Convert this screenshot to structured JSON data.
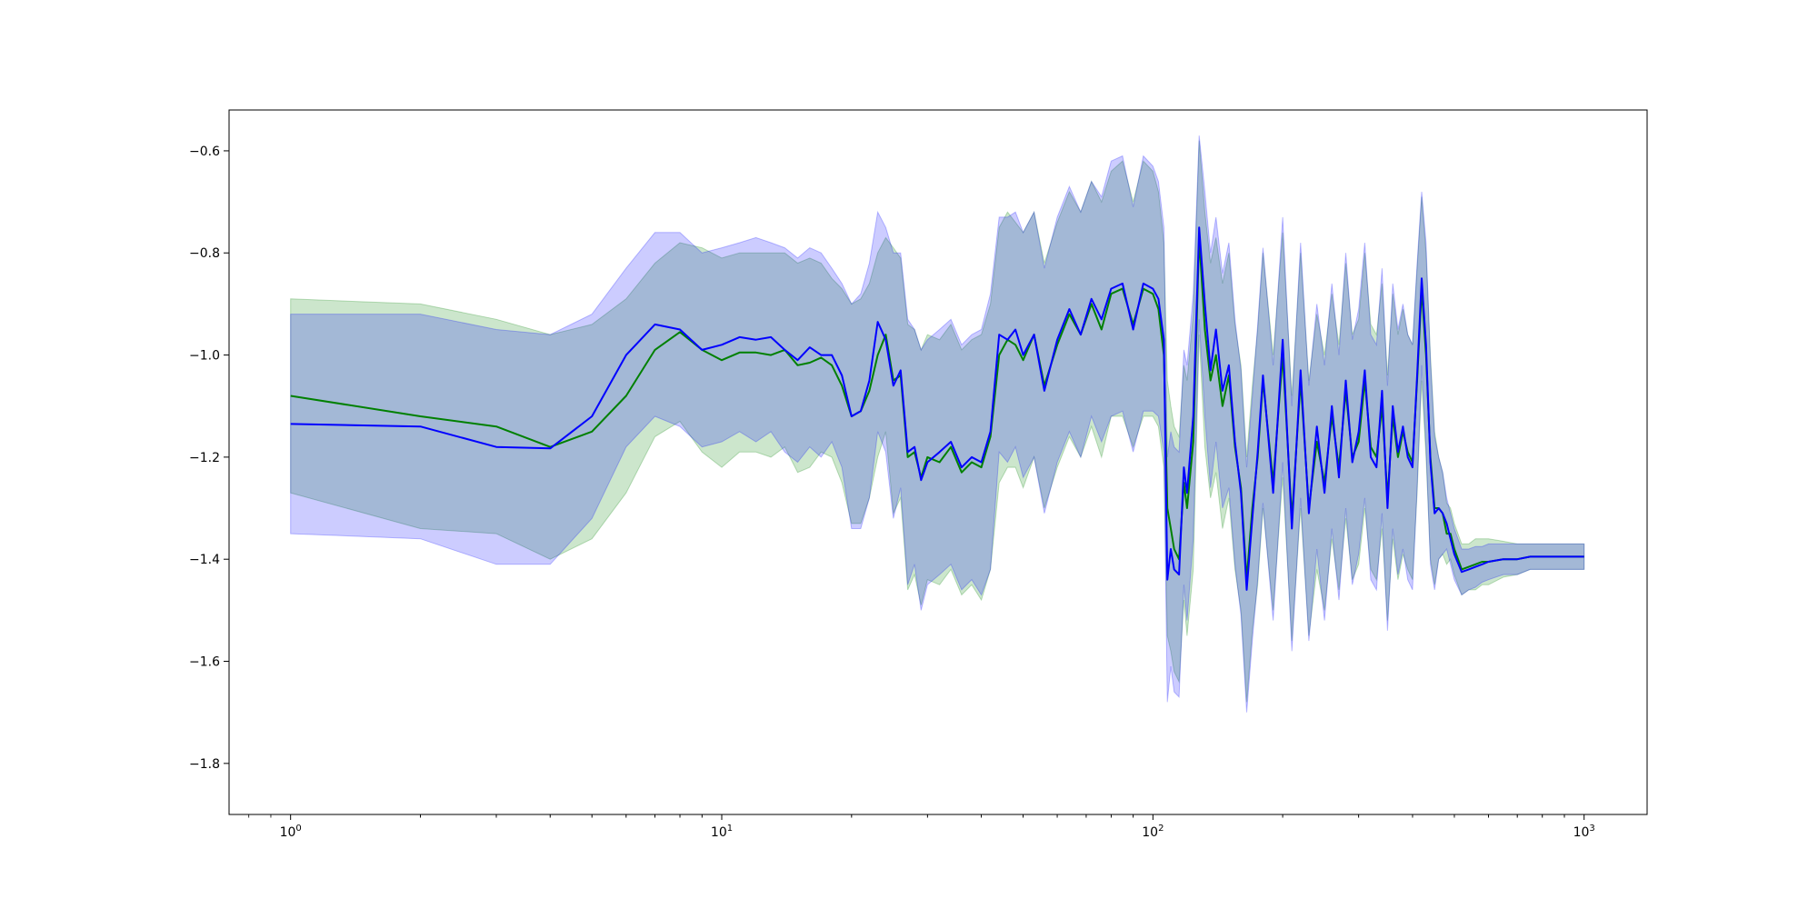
{
  "chart_data": {
    "type": "line",
    "title": "",
    "xlabel": "",
    "ylabel": "",
    "xscale": "log",
    "xlim": [
      0.72,
      1400
    ],
    "ylim": [
      -1.9,
      -0.52
    ],
    "grid": false,
    "legend": "none",
    "x_ticks": [
      {
        "value": 1,
        "base": "10",
        "exp": "0"
      },
      {
        "value": 10,
        "base": "10",
        "exp": "1"
      },
      {
        "value": 100,
        "base": "10",
        "exp": "2"
      },
      {
        "value": 1000,
        "base": "10",
        "exp": "3"
      }
    ],
    "y_ticks": [
      {
        "value": -0.6,
        "label": "−0.6"
      },
      {
        "value": -0.8,
        "label": "−0.8"
      },
      {
        "value": -1.0,
        "label": "−1.0"
      },
      {
        "value": -1.2,
        "label": "−1.2"
      },
      {
        "value": -1.4,
        "label": "−1.4"
      },
      {
        "value": -1.6,
        "label": "−1.6"
      },
      {
        "value": -1.8,
        "label": "−1.8"
      }
    ],
    "series": [
      {
        "color": "#008000",
        "band_color": "#008000",
        "x": [
          1,
          2,
          3,
          4,
          5,
          6,
          7,
          8,
          9,
          10,
          11,
          12,
          13,
          14,
          15,
          16,
          17,
          18,
          19,
          20,
          21,
          22,
          23,
          24,
          25,
          26,
          27,
          28,
          29,
          30,
          32,
          34,
          36,
          38,
          40,
          42,
          44,
          46,
          48,
          50,
          53,
          56,
          60,
          64,
          68,
          72,
          76,
          80,
          85,
          90,
          95,
          100,
          103,
          106,
          108,
          110,
          112,
          115,
          118,
          120,
          124,
          128,
          132,
          136,
          140,
          145,
          150,
          155,
          160,
          165,
          170,
          175,
          180,
          190,
          200,
          210,
          220,
          230,
          240,
          250,
          260,
          270,
          280,
          290,
          300,
          310,
          320,
          330,
          340,
          350,
          360,
          370,
          380,
          390,
          400,
          410,
          420,
          430,
          440,
          450,
          460,
          470,
          480,
          490,
          500,
          520,
          540,
          560,
          580,
          600,
          650,
          700,
          750,
          800,
          850,
          900,
          950,
          1000
        ],
        "mean": [
          -1.08,
          -1.12,
          -1.14,
          -1.18,
          -1.15,
          -1.08,
          -0.99,
          -0.955,
          -0.99,
          -1.01,
          -0.995,
          -0.995,
          -1.0,
          -0.99,
          -1.02,
          -1.015,
          -1.005,
          -1.02,
          -1.06,
          -1.12,
          -1.11,
          -1.07,
          -1.0,
          -0.96,
          -1.05,
          -1.04,
          -1.2,
          -1.19,
          -1.24,
          -1.2,
          -1.21,
          -1.18,
          -1.23,
          -1.21,
          -1.22,
          -1.16,
          -1.0,
          -0.97,
          -0.98,
          -1.01,
          -0.96,
          -1.06,
          -0.98,
          -0.92,
          -0.96,
          -0.9,
          -0.95,
          -0.88,
          -0.87,
          -0.94,
          -0.87,
          -0.88,
          -0.91,
          -1.0,
          -1.3,
          -1.34,
          -1.38,
          -1.4,
          -1.25,
          -1.3,
          -1.17,
          -0.77,
          -0.95,
          -1.05,
          -1.0,
          -1.1,
          -1.04,
          -1.18,
          -1.26,
          -1.44,
          -1.3,
          -1.2,
          -1.05,
          -1.25,
          -1.0,
          -1.32,
          -1.05,
          -1.3,
          -1.17,
          -1.25,
          -1.12,
          -1.22,
          -1.07,
          -1.2,
          -1.17,
          -1.05,
          -1.18,
          -1.2,
          -1.1,
          -1.28,
          -1.12,
          -1.2,
          -1.15,
          -1.19,
          -1.21,
          -1.05,
          -0.87,
          -1.0,
          -1.2,
          -1.3,
          -1.3,
          -1.31,
          -1.35,
          -1.35,
          -1.38,
          -1.42,
          -1.415,
          -1.41,
          -1.405,
          -1.405,
          -1.4,
          -1.4,
          -1.395,
          -1.395,
          -1.395,
          -1.395,
          -1.395,
          -1.395
        ],
        "upper": [
          -0.89,
          -0.9,
          -0.93,
          -0.96,
          -0.94,
          -0.89,
          -0.82,
          -0.78,
          -0.79,
          -0.81,
          -0.8,
          -0.8,
          -0.8,
          -0.8,
          -0.82,
          -0.81,
          -0.82,
          -0.85,
          -0.87,
          -0.9,
          -0.89,
          -0.86,
          -0.8,
          -0.77,
          -0.79,
          -0.81,
          -0.94,
          -0.95,
          -0.99,
          -0.96,
          -0.97,
          -0.94,
          -0.99,
          -0.97,
          -0.96,
          -0.9,
          -0.75,
          -0.72,
          -0.74,
          -0.76,
          -0.72,
          -0.82,
          -0.74,
          -0.68,
          -0.72,
          -0.66,
          -0.7,
          -0.64,
          -0.62,
          -0.7,
          -0.62,
          -0.64,
          -0.68,
          -0.78,
          -1.05,
          -1.1,
          -1.14,
          -1.16,
          -1.02,
          -1.05,
          -0.92,
          -0.58,
          -0.72,
          -0.82,
          -0.77,
          -0.86,
          -0.8,
          -0.94,
          -1.02,
          -1.2,
          -1.06,
          -0.95,
          -0.8,
          -1.0,
          -0.76,
          -1.08,
          -0.8,
          -1.05,
          -0.92,
          -1.0,
          -0.88,
          -0.98,
          -0.82,
          -0.96,
          -0.93,
          -0.8,
          -0.94,
          -0.96,
          -0.86,
          -1.04,
          -0.88,
          -0.96,
          -0.91,
          -0.96,
          -0.98,
          -0.83,
          -0.69,
          -0.8,
          -1.0,
          -1.15,
          -1.2,
          -1.23,
          -1.29,
          -1.3,
          -1.33,
          -1.37,
          -1.37,
          -1.36,
          -1.36,
          -1.36,
          -1.365,
          -1.37,
          -1.37,
          -1.37,
          -1.37,
          -1.37,
          -1.37,
          -1.37
        ],
        "lower": [
          -1.27,
          -1.34,
          -1.35,
          -1.4,
          -1.36,
          -1.27,
          -1.16,
          -1.13,
          -1.19,
          -1.22,
          -1.19,
          -1.19,
          -1.2,
          -1.18,
          -1.23,
          -1.22,
          -1.19,
          -1.2,
          -1.25,
          -1.33,
          -1.33,
          -1.28,
          -1.2,
          -1.15,
          -1.31,
          -1.28,
          -1.46,
          -1.43,
          -1.49,
          -1.44,
          -1.45,
          -1.42,
          -1.47,
          -1.45,
          -1.48,
          -1.42,
          -1.25,
          -1.22,
          -1.22,
          -1.26,
          -1.2,
          -1.3,
          -1.22,
          -1.16,
          -1.2,
          -1.14,
          -1.2,
          -1.12,
          -1.12,
          -1.18,
          -1.12,
          -1.12,
          -1.14,
          -1.22,
          -1.55,
          -1.58,
          -1.62,
          -1.64,
          -1.48,
          -1.55,
          -1.42,
          -0.96,
          -1.18,
          -1.28,
          -1.23,
          -1.34,
          -1.28,
          -1.42,
          -1.5,
          -1.68,
          -1.54,
          -1.45,
          -1.3,
          -1.5,
          -1.24,
          -1.56,
          -1.3,
          -1.55,
          -1.42,
          -1.5,
          -1.36,
          -1.46,
          -1.32,
          -1.44,
          -1.41,
          -1.3,
          -1.42,
          -1.44,
          -1.34,
          -1.52,
          -1.36,
          -1.44,
          -1.39,
          -1.42,
          -1.44,
          -1.27,
          -1.05,
          -1.2,
          -1.4,
          -1.45,
          -1.4,
          -1.39,
          -1.41,
          -1.4,
          -1.43,
          -1.47,
          -1.46,
          -1.46,
          -1.45,
          -1.45,
          -1.435,
          -1.43,
          -1.42,
          -1.42,
          -1.42,
          -1.42,
          -1.42,
          -1.42
        ]
      },
      {
        "color": "#0000ff",
        "band_color": "#0000ff",
        "x": [
          1,
          2,
          3,
          4,
          5,
          6,
          7,
          8,
          9,
          10,
          11,
          12,
          13,
          14,
          15,
          16,
          17,
          18,
          19,
          20,
          21,
          22,
          23,
          24,
          25,
          26,
          27,
          28,
          29,
          30,
          32,
          34,
          36,
          38,
          40,
          42,
          44,
          46,
          48,
          50,
          53,
          56,
          60,
          64,
          68,
          72,
          76,
          80,
          85,
          90,
          95,
          100,
          103,
          106,
          108,
          110,
          112,
          115,
          118,
          120,
          124,
          128,
          132,
          136,
          140,
          145,
          150,
          155,
          160,
          165,
          170,
          175,
          180,
          190,
          200,
          210,
          220,
          230,
          240,
          250,
          260,
          270,
          280,
          290,
          300,
          310,
          320,
          330,
          340,
          350,
          360,
          370,
          380,
          390,
          400,
          410,
          420,
          430,
          440,
          450,
          460,
          470,
          480,
          490,
          500,
          520,
          540,
          560,
          580,
          600,
          650,
          700,
          750,
          800,
          850,
          900,
          950,
          1000
        ],
        "mean": [
          -1.135,
          -1.14,
          -1.18,
          -1.183,
          -1.12,
          -1.0,
          -0.94,
          -0.95,
          -0.99,
          -0.98,
          -0.965,
          -0.97,
          -0.965,
          -0.99,
          -1.01,
          -0.985,
          -1.0,
          -1.0,
          -1.04,
          -1.12,
          -1.11,
          -1.05,
          -0.935,
          -0.97,
          -1.06,
          -1.03,
          -1.19,
          -1.18,
          -1.245,
          -1.21,
          -1.19,
          -1.17,
          -1.22,
          -1.2,
          -1.21,
          -1.15,
          -0.96,
          -0.97,
          -0.95,
          -1.0,
          -0.96,
          -1.07,
          -0.97,
          -0.91,
          -0.96,
          -0.89,
          -0.93,
          -0.87,
          -0.86,
          -0.95,
          -0.86,
          -0.87,
          -0.89,
          -0.97,
          -1.44,
          -1.38,
          -1.42,
          -1.43,
          -1.22,
          -1.27,
          -1.12,
          -0.75,
          -0.9,
          -1.03,
          -0.95,
          -1.07,
          -1.02,
          -1.17,
          -1.27,
          -1.46,
          -1.32,
          -1.19,
          -1.04,
          -1.27,
          -0.97,
          -1.34,
          -1.03,
          -1.31,
          -1.14,
          -1.27,
          -1.1,
          -1.24,
          -1.05,
          -1.21,
          -1.15,
          -1.03,
          -1.2,
          -1.22,
          -1.07,
          -1.3,
          -1.1,
          -1.19,
          -1.14,
          -1.2,
          -1.22,
          -1.04,
          -0.85,
          -0.98,
          -1.21,
          -1.31,
          -1.3,
          -1.31,
          -1.33,
          -1.36,
          -1.39,
          -1.425,
          -1.42,
          -1.415,
          -1.41,
          -1.405,
          -1.4,
          -1.4,
          -1.395,
          -1.395,
          -1.395,
          -1.395,
          -1.395,
          -1.395
        ],
        "upper": [
          -0.92,
          -0.92,
          -0.95,
          -0.96,
          -0.92,
          -0.83,
          -0.76,
          -0.76,
          -0.8,
          -0.79,
          -0.78,
          -0.77,
          -0.78,
          -0.79,
          -0.81,
          -0.79,
          -0.8,
          -0.83,
          -0.86,
          -0.9,
          -0.88,
          -0.82,
          -0.72,
          -0.75,
          -0.8,
          -0.8,
          -0.93,
          -0.95,
          -0.99,
          -0.97,
          -0.95,
          -0.93,
          -0.98,
          -0.96,
          -0.95,
          -0.88,
          -0.73,
          -0.73,
          -0.72,
          -0.76,
          -0.72,
          -0.83,
          -0.73,
          -0.67,
          -0.72,
          -0.66,
          -0.69,
          -0.62,
          -0.61,
          -0.71,
          -0.61,
          -0.63,
          -0.66,
          -0.75,
          -1.2,
          -1.15,
          -1.18,
          -1.19,
          -0.99,
          -1.02,
          -0.88,
          -0.57,
          -0.68,
          -0.8,
          -0.73,
          -0.84,
          -0.78,
          -0.93,
          -1.03,
          -1.22,
          -1.08,
          -0.94,
          -0.79,
          -1.02,
          -0.73,
          -1.1,
          -0.78,
          -1.06,
          -0.9,
          -1.02,
          -0.86,
          -1.0,
          -0.8,
          -0.97,
          -0.91,
          -0.78,
          -0.96,
          -0.98,
          -0.83,
          -1.06,
          -0.86,
          -0.95,
          -0.9,
          -0.96,
          -0.98,
          -0.82,
          -0.68,
          -0.78,
          -1.01,
          -1.16,
          -1.2,
          -1.23,
          -1.28,
          -1.31,
          -1.34,
          -1.38,
          -1.38,
          -1.375,
          -1.375,
          -1.37,
          -1.37,
          -1.37,
          -1.37,
          -1.37,
          -1.37,
          -1.37,
          -1.37,
          -1.37
        ],
        "lower": [
          -1.35,
          -1.36,
          -1.41,
          -1.41,
          -1.32,
          -1.18,
          -1.12,
          -1.14,
          -1.18,
          -1.17,
          -1.15,
          -1.17,
          -1.15,
          -1.19,
          -1.21,
          -1.18,
          -1.2,
          -1.17,
          -1.22,
          -1.34,
          -1.34,
          -1.28,
          -1.15,
          -1.19,
          -1.32,
          -1.26,
          -1.45,
          -1.41,
          -1.5,
          -1.45,
          -1.43,
          -1.41,
          -1.46,
          -1.44,
          -1.47,
          -1.42,
          -1.19,
          -1.21,
          -1.18,
          -1.24,
          -1.2,
          -1.31,
          -1.21,
          -1.15,
          -1.2,
          -1.12,
          -1.17,
          -1.12,
          -1.11,
          -1.19,
          -1.11,
          -1.11,
          -1.12,
          -1.19,
          -1.68,
          -1.61,
          -1.66,
          -1.67,
          -1.45,
          -1.52,
          -1.36,
          -0.93,
          -1.12,
          -1.26,
          -1.17,
          -1.3,
          -1.26,
          -1.41,
          -1.51,
          -1.7,
          -1.56,
          -1.44,
          -1.29,
          -1.52,
          -1.21,
          -1.58,
          -1.28,
          -1.56,
          -1.38,
          -1.52,
          -1.34,
          -1.48,
          -1.3,
          -1.45,
          -1.39,
          -1.28,
          -1.44,
          -1.46,
          -1.31,
          -1.54,
          -1.34,
          -1.43,
          -1.38,
          -1.44,
          -1.46,
          -1.26,
          -1.02,
          -1.18,
          -1.41,
          -1.46,
          -1.4,
          -1.39,
          -1.38,
          -1.41,
          -1.44,
          -1.47,
          -1.46,
          -1.455,
          -1.445,
          -1.44,
          -1.43,
          -1.43,
          -1.42,
          -1.42,
          -1.42,
          -1.42,
          -1.42,
          -1.42
        ]
      }
    ]
  }
}
